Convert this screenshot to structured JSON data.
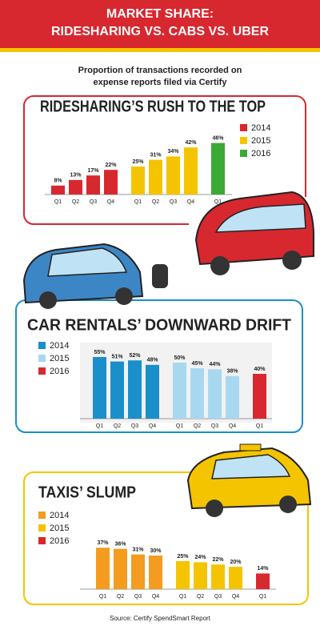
{
  "title": [
    "MARKET SHARE:",
    "RIDESHARING VS. CABS VS. UBER"
  ],
  "subtitle": [
    "Proportion of transactions recorded on",
    "expense reports filed via Certify"
  ],
  "source": "Source: Certify SpendSmart Report",
  "chart_data": [
    {
      "type": "bar",
      "title": "RIDESHARING’S RUSH TO THE TOP",
      "series": [
        {
          "name": "2014",
          "color": "#d7282f",
          "categories": [
            "Q1",
            "Q2",
            "Q3",
            "Q4"
          ],
          "values": [
            8,
            13,
            17,
            22
          ],
          "value_labels": [
            "8%",
            "13%",
            "17%",
            "22%"
          ]
        },
        {
          "name": "2015",
          "color": "#f5c400",
          "categories": [
            "Q1",
            "Q2",
            "Q3",
            "Q4"
          ],
          "values": [
            25,
            31,
            34,
            42
          ],
          "value_labels": [
            "25%",
            "31%",
            "34%",
            "42%"
          ]
        },
        {
          "name": "2016",
          "color": "#3aaa35",
          "categories": [
            "Q1"
          ],
          "values": [
            46
          ],
          "value_labels": [
            "46%"
          ]
        }
      ]
    },
    {
      "type": "bar",
      "title": "CAR RENTALS’ DOWNWARD DRIFT",
      "series": [
        {
          "name": "2014",
          "color": "#1a8fc9",
          "categories": [
            "Q1",
            "Q2",
            "Q3",
            "Q4"
          ],
          "values": [
            55,
            51,
            52,
            48
          ],
          "value_labels": [
            "55%",
            "51%",
            "52%",
            "48%"
          ]
        },
        {
          "name": "2015",
          "color": "#a8d8f0",
          "categories": [
            "Q1",
            "Q2",
            "Q3",
            "Q4"
          ],
          "values": [
            50,
            45,
            44,
            38
          ],
          "value_labels": [
            "50%",
            "45%",
            "44%",
            "38%"
          ]
        },
        {
          "name": "2016",
          "color": "#d7282f",
          "categories": [
            "Q1"
          ],
          "values": [
            40
          ],
          "value_labels": [
            "40%"
          ]
        }
      ]
    },
    {
      "type": "bar",
      "title": "TAXIS’ SLUMP",
      "series": [
        {
          "name": "2014",
          "color": "#f39c1f",
          "categories": [
            "Q1",
            "Q2",
            "Q3",
            "Q4"
          ],
          "values": [
            37,
            36,
            31,
            30
          ],
          "value_labels": [
            "37%",
            "36%",
            "31%",
            "30%"
          ]
        },
        {
          "name": "2015",
          "color": "#f5c400",
          "categories": [
            "Q1",
            "Q2",
            "Q3",
            "Q4"
          ],
          "values": [
            25,
            24,
            22,
            20
          ],
          "value_labels": [
            "25%",
            "24%",
            "22%",
            "20%"
          ]
        },
        {
          "name": "2016",
          "color": "#d7282f",
          "categories": [
            "Q1"
          ],
          "values": [
            14
          ],
          "value_labels": [
            "14%"
          ]
        }
      ]
    }
  ]
}
